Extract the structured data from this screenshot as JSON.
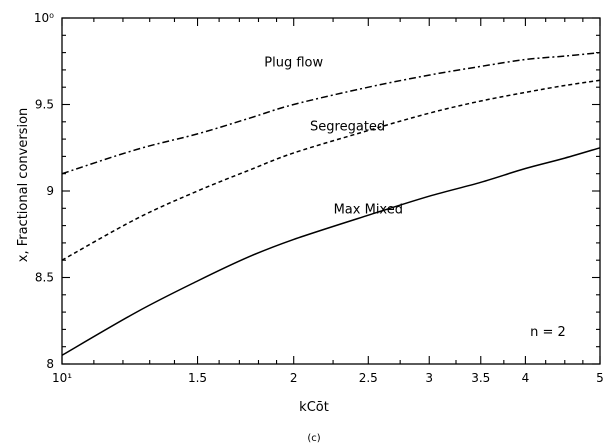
{
  "chart_data": {
    "type": "line",
    "title": "",
    "xlabel": "kCōt",
    "ylabel": "x, Fractional conversion",
    "caption": "(c)",
    "annotation": "n = 2",
    "x_scale": "log",
    "xlim": [
      1,
      5
    ],
    "ylim": [
      8,
      10
    ],
    "x_ticks": [
      {
        "value": 1,
        "label": "10¹"
      },
      {
        "value": 1.5,
        "label": "1.5"
      },
      {
        "value": 2,
        "label": "2"
      },
      {
        "value": 2.5,
        "label": "2.5"
      },
      {
        "value": 3,
        "label": "3"
      },
      {
        "value": 3.5,
        "label": "3.5"
      },
      {
        "value": 4,
        "label": "4"
      },
      {
        "value": 5,
        "label": "5"
      }
    ],
    "y_ticks": [
      {
        "value": 8,
        "label": "8"
      },
      {
        "value": 8.5,
        "label": "8.5"
      },
      {
        "value": 9,
        "label": "9"
      },
      {
        "value": 9.5,
        "label": "9.5"
      },
      {
        "value": 10,
        "label": "10⁰"
      }
    ],
    "minor_x_ticks": [
      1.1,
      1.2,
      1.3,
      1.4,
      1.6,
      1.7,
      1.8,
      1.9,
      2.25,
      2.75,
      3.25,
      3.75,
      4.25,
      4.5,
      4.75
    ],
    "minor_y_ticks": [
      8.1,
      8.2,
      8.3,
      8.4,
      8.6,
      8.7,
      8.8,
      8.9,
      9.1,
      9.2,
      9.3,
      9.4,
      9.6,
      9.7,
      9.8,
      9.9
    ],
    "grid": false,
    "series": [
      {
        "name": "Plug flow",
        "style": "dashdot",
        "label_at": {
          "x": 2,
          "y": 9.72
        },
        "x": [
          1,
          1.25,
          1.5,
          1.75,
          2,
          2.5,
          3,
          3.5,
          4,
          4.5,
          5
        ],
        "values": [
          9.1,
          9.24,
          9.33,
          9.42,
          9.5,
          9.6,
          9.67,
          9.72,
          9.76,
          9.78,
          9.8
        ]
      },
      {
        "name": "Segregated",
        "style": "dashed",
        "label_at": {
          "x": 2.35,
          "y": 9.35
        },
        "x": [
          1,
          1.25,
          1.5,
          1.75,
          2,
          2.5,
          3,
          3.5,
          4,
          4.5,
          5
        ],
        "values": [
          8.6,
          8.84,
          9.0,
          9.12,
          9.22,
          9.35,
          9.45,
          9.52,
          9.57,
          9.61,
          9.64
        ]
      },
      {
        "name": "Max Mixed",
        "style": "solid",
        "label_at": {
          "x": 2.5,
          "y": 8.87
        },
        "x": [
          1,
          1.25,
          1.5,
          1.75,
          2,
          2.5,
          3,
          3.5,
          4,
          4.5,
          5
        ],
        "values": [
          8.05,
          8.3,
          8.48,
          8.62,
          8.72,
          8.86,
          8.97,
          9.05,
          9.13,
          9.19,
          9.25
        ]
      }
    ],
    "colors": {
      "line": "#000000",
      "background": "#ffffff"
    }
  }
}
